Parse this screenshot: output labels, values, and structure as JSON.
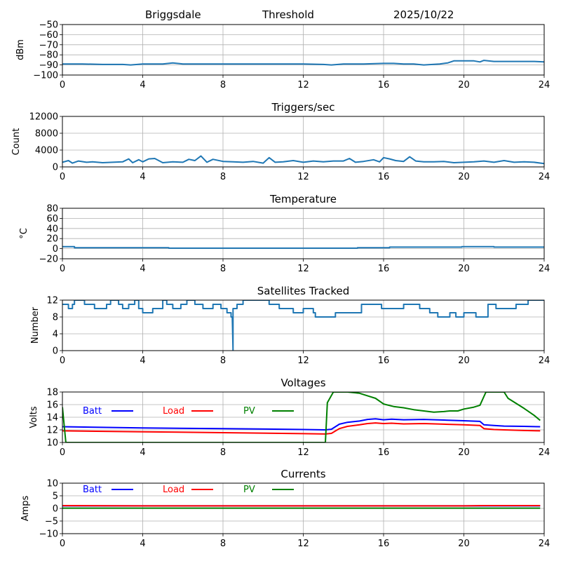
{
  "header": {
    "station": "Briggsdale",
    "mode": "Threshold",
    "date": "2025/10/22"
  },
  "chart_data": [
    {
      "type": "line",
      "title": "",
      "ylabel": "dBm",
      "xlabel": "",
      "xlim": [
        0,
        24
      ],
      "ylim": [
        -100,
        -50
      ],
      "xticks": [
        0,
        4,
        8,
        12,
        16,
        20,
        24
      ],
      "yticks": [
        -100,
        -90,
        -80,
        -70,
        -60,
        -50
      ],
      "ytick_labels": [
        "−100",
        "−90",
        "−80",
        "−70",
        "−60",
        "−50"
      ],
      "grid": true,
      "series": [
        {
          "name": "Threshold",
          "color": "#1f77b4",
          "x": [
            0,
            1,
            2,
            3,
            3.4,
            4,
            5,
            5.5,
            6,
            7,
            8,
            9,
            10,
            11,
            12,
            13,
            13.4,
            14,
            15,
            16,
            16.5,
            17,
            17.5,
            18,
            18.8,
            19.2,
            19.5,
            20,
            20.5,
            20.8,
            21,
            21.5,
            22,
            22.5,
            23,
            23.5,
            24
          ],
          "y": [
            -89,
            -89,
            -89.5,
            -89.5,
            -90,
            -89,
            -89,
            -88,
            -89,
            -89,
            -89,
            -89,
            -89,
            -89,
            -89,
            -89.5,
            -90,
            -89,
            -89,
            -88.5,
            -88.5,
            -89,
            -89,
            -90,
            -89,
            -88,
            -86,
            -86,
            -86,
            -87,
            -85.5,
            -86.5,
            -86.5,
            -86.5,
            -86.5,
            -86.5,
            -87
          ]
        }
      ]
    },
    {
      "type": "line",
      "title": "Triggers/sec",
      "ylabel": "Count",
      "xlim": [
        0,
        24
      ],
      "ylim": [
        0,
        12000
      ],
      "xticks": [
        0,
        4,
        8,
        12,
        16,
        20,
        24
      ],
      "yticks": [
        0,
        4000,
        8000,
        12000
      ],
      "ytick_labels": [
        "0",
        "4000",
        "8000",
        "12000"
      ],
      "grid": true,
      "series": [
        {
          "name": "Triggers",
          "color": "#1f77b4",
          "x": [
            0,
            0.3,
            0.5,
            0.8,
            1.2,
            1.5,
            2,
            2.5,
            3,
            3.3,
            3.5,
            3.8,
            4,
            4.3,
            4.6,
            5,
            5.5,
            6,
            6.3,
            6.6,
            6.9,
            7.2,
            7.5,
            8,
            8.5,
            9,
            9.5,
            10,
            10.3,
            10.6,
            11,
            11.5,
            12,
            12.5,
            13,
            13.5,
            14,
            14.3,
            14.6,
            15,
            15.5,
            15.8,
            16,
            16.3,
            16.6,
            17,
            17.3,
            17.6,
            18,
            18.5,
            19,
            19.5,
            20,
            20.5,
            21,
            21.5,
            22,
            22.5,
            23,
            23.5,
            24
          ],
          "y": [
            1100,
            1500,
            900,
            1400,
            1100,
            1200,
            1000,
            1100,
            1200,
            1900,
            1000,
            1700,
            1200,
            1900,
            2000,
            1000,
            1200,
            1100,
            1800,
            1500,
            2600,
            1100,
            1800,
            1300,
            1200,
            1100,
            1300,
            900,
            2200,
            1100,
            1200,
            1500,
            1100,
            1400,
            1200,
            1400,
            1400,
            2000,
            1100,
            1300,
            1700,
            1200,
            2200,
            1900,
            1500,
            1300,
            2400,
            1400,
            1200,
            1200,
            1300,
            1000,
            1100,
            1200,
            1400,
            1100,
            1500,
            1100,
            1200,
            1100,
            800
          ]
        }
      ]
    },
    {
      "type": "line",
      "title": "Temperature",
      "ylabel": "°C",
      "xlim": [
        0,
        24
      ],
      "ylim": [
        -20,
        80
      ],
      "xticks": [
        0,
        4,
        8,
        12,
        16,
        20,
        24
      ],
      "yticks": [
        -20,
        0,
        20,
        40,
        60,
        80
      ],
      "ytick_labels": [
        "−20",
        "0",
        "20",
        "40",
        "60",
        "80"
      ],
      "grid": true,
      "series": [
        {
          "name": "Temperature",
          "color": "#1f77b4",
          "x": [
            0,
            0.6,
            0.6,
            5.3,
            5.3,
            14.7,
            14.7,
            16.3,
            16.3,
            19.9,
            19.9,
            21.5,
            21.5,
            24
          ],
          "y": [
            4,
            4,
            2,
            2,
            1,
            1,
            2,
            2,
            3,
            3,
            4,
            4,
            3,
            3
          ]
        }
      ]
    },
    {
      "type": "line",
      "title": "Satellites Tracked",
      "ylabel": "Number",
      "xlim": [
        0,
        24
      ],
      "ylim": [
        0,
        12
      ],
      "xticks": [
        0,
        4,
        8,
        12,
        16,
        20,
        24
      ],
      "yticks": [
        0,
        4,
        8,
        12
      ],
      "ytick_labels": [
        "0",
        "4",
        "8",
        "12"
      ],
      "grid": true,
      "series": [
        {
          "name": "Satellites",
          "color": "#1f77b4",
          "x": [
            0,
            0.3,
            0.3,
            0.5,
            0.5,
            0.6,
            0.6,
            1.1,
            1.1,
            1.6,
            1.6,
            2.2,
            2.2,
            2.4,
            2.4,
            2.8,
            2.8,
            3.0,
            3.0,
            3.3,
            3.3,
            3.6,
            3.6,
            3.8,
            3.8,
            4.0,
            4.0,
            4.5,
            4.5,
            5.0,
            5.0,
            5.2,
            5.2,
            5.5,
            5.5,
            5.9,
            5.9,
            6.2,
            6.2,
            6.6,
            6.6,
            7.0,
            7.0,
            7.5,
            7.5,
            7.9,
            7.9,
            8.2,
            8.2,
            8.4,
            8.4,
            8.46,
            8.5,
            8.5,
            8.7,
            8.7,
            9.0,
            9.0,
            10.3,
            10.3,
            10.8,
            10.8,
            11.5,
            11.5,
            12.0,
            12.0,
            12.5,
            12.5,
            12.6,
            12.6,
            13.6,
            13.6,
            14.7,
            14.7,
            14.9,
            14.9,
            15.3,
            15.3,
            15.9,
            15.9,
            16.5,
            16.5,
            17.0,
            17.0,
            17.8,
            17.8,
            18.3,
            18.3,
            18.7,
            18.7,
            19.3,
            19.3,
            19.6,
            19.6,
            20.0,
            20.0,
            20.6,
            20.6,
            21.2,
            21.2,
            21.6,
            21.6,
            22.0,
            22.0,
            22.6,
            22.6,
            23.2,
            23.2,
            24
          ],
          "y": [
            11,
            11,
            10,
            10,
            11,
            11,
            12,
            12,
            11,
            11,
            10,
            10,
            11,
            11,
            12,
            12,
            11,
            11,
            10,
            10,
            11,
            11,
            12,
            12,
            10,
            10,
            9,
            9,
            10,
            10,
            12,
            12,
            11,
            11,
            10,
            10,
            11,
            11,
            12,
            12,
            11,
            11,
            10,
            10,
            11,
            11,
            10,
            10,
            9,
            9,
            8,
            8,
            0,
            10,
            10,
            11,
            11,
            12,
            12,
            11,
            11,
            10,
            10,
            9,
            9,
            10,
            10,
            9,
            9,
            8,
            8,
            9,
            9,
            9,
            9,
            11,
            11,
            11,
            11,
            10,
            10,
            10,
            10,
            11,
            11,
            10,
            10,
            9,
            9,
            8,
            8,
            9,
            9,
            8,
            8,
            9,
            9,
            8,
            8,
            11,
            11,
            10,
            10,
            10,
            10,
            11,
            11,
            12,
            12
          ]
        }
      ]
    },
    {
      "type": "line",
      "title": "Voltages",
      "ylabel": "Volts",
      "xlim": [
        0,
        24
      ],
      "ylim": [
        10,
        18
      ],
      "xticks": [
        0,
        4,
        8,
        12,
        16,
        20,
        24
      ],
      "yticks": [
        10,
        12,
        14,
        16,
        18
      ],
      "ytick_labels": [
        "10",
        "12",
        "14",
        "16",
        "18"
      ],
      "grid": true,
      "legend": {
        "placement": "top-left inline",
        "entries": [
          "Batt",
          "Load",
          "PV"
        ]
      },
      "series": [
        {
          "name": "Batt",
          "color": "#0000ff",
          "x": [
            0,
            4,
            8,
            12,
            13.1,
            13.4,
            13.8,
            14.2,
            14.8,
            15.2,
            15.6,
            16.0,
            16.4,
            17,
            18,
            19,
            20,
            20.8,
            21,
            21.5,
            22,
            23,
            23.8
          ],
          "y": [
            12.5,
            12.3,
            12.2,
            12.05,
            12.0,
            12.1,
            12.9,
            13.2,
            13.4,
            13.65,
            13.75,
            13.6,
            13.7,
            13.6,
            13.65,
            13.55,
            13.45,
            13.35,
            12.8,
            12.7,
            12.6,
            12.55,
            12.5
          ]
        },
        {
          "name": "Load",
          "color": "#ff0000",
          "x": [
            0,
            4,
            8,
            12,
            13.1,
            13.4,
            13.8,
            14.2,
            14.8,
            15.2,
            15.6,
            16.0,
            16.4,
            17,
            18,
            19,
            20,
            20.8,
            21,
            21.5,
            22,
            23,
            23.8
          ],
          "y": [
            11.85,
            11.7,
            11.55,
            11.4,
            11.35,
            11.45,
            12.2,
            12.55,
            12.8,
            13.0,
            13.1,
            13.0,
            13.05,
            12.95,
            13.0,
            12.9,
            12.8,
            12.7,
            12.2,
            12.05,
            12.0,
            11.9,
            11.85
          ]
        },
        {
          "name": "PV",
          "color": "#008000",
          "x": [
            0,
            0.17,
            13.1,
            13.2,
            13.5,
            14.2,
            14.8,
            15.2,
            15.6,
            16.0,
            16.5,
            17,
            17.5,
            18,
            18.5,
            19,
            19.3,
            19.7,
            20,
            20.5,
            20.8,
            21.1,
            22.0,
            22.2,
            23,
            23.5,
            23.8
          ],
          "y": [
            15.6,
            10,
            10,
            16.3,
            18,
            18,
            17.8,
            17.4,
            17.0,
            16.1,
            15.7,
            15.5,
            15.2,
            15.0,
            14.8,
            14.9,
            15.0,
            15.0,
            15.3,
            15.6,
            15.9,
            18,
            18,
            17.0,
            15.4,
            14.3,
            13.5
          ]
        }
      ]
    },
    {
      "type": "line",
      "title": "Currents",
      "ylabel": "Amps",
      "xlim": [
        0,
        24
      ],
      "ylim": [
        -10,
        10
      ],
      "xticks": [
        0,
        4,
        8,
        12,
        16,
        20,
        24
      ],
      "yticks": [
        -10,
        -5,
        0,
        5,
        10
      ],
      "ytick_labels": [
        "−10",
        "−5",
        "0",
        "5",
        "10"
      ],
      "grid": true,
      "legend": {
        "placement": "top-left inline",
        "entries": [
          "Batt",
          "Load",
          "PV"
        ]
      },
      "series": [
        {
          "name": "Batt",
          "color": "#0000ff",
          "x": [
            0,
            23.8
          ],
          "y": [
            1.0,
            1.0
          ]
        },
        {
          "name": "Load",
          "color": "#ff0000",
          "x": [
            0,
            4,
            8,
            12,
            16,
            20,
            21,
            23.8
          ],
          "y": [
            1.1,
            1.0,
            1.0,
            1.0,
            1.0,
            1.0,
            1.1,
            1.1
          ]
        },
        {
          "name": "PV",
          "color": "#008000",
          "x": [
            0,
            23.8
          ],
          "y": [
            0.1,
            0.1
          ]
        }
      ]
    }
  ]
}
